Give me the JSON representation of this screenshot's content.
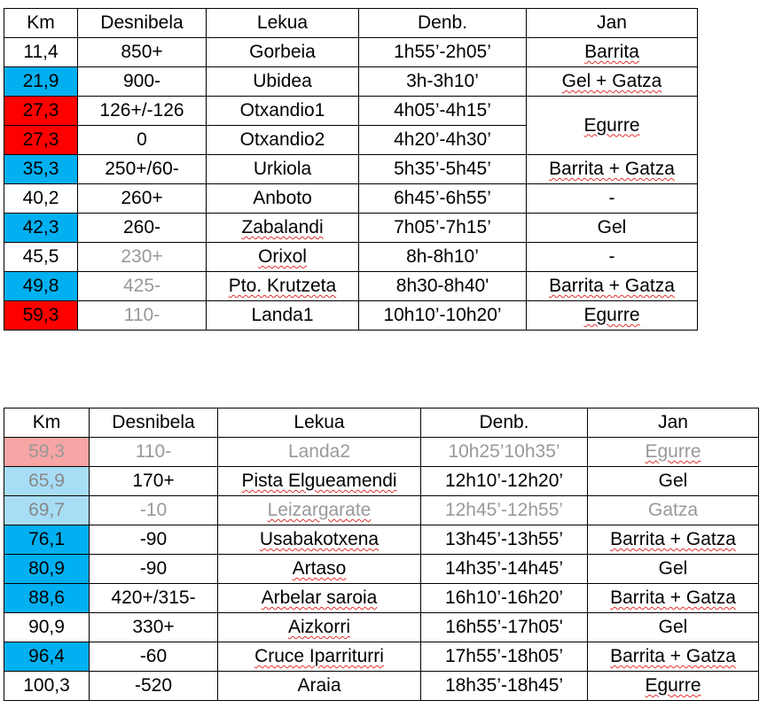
{
  "colors": {
    "blue": "#00b0f0",
    "red": "#ff0000",
    "pink": "#f8a5a5",
    "light_blue": "#a8ddf6"
  },
  "headers": [
    "Km",
    "Desnibela",
    "Lekua",
    "Denb.",
    "Jan"
  ],
  "table1": {
    "rows": [
      {
        "km": "11,4",
        "desnibela": "850+",
        "lekua": "Gorbeia",
        "denb": "1h55’-2h05’",
        "jan": "Barrita"
      },
      {
        "km": "21,9",
        "desnibela": "900-",
        "lekua": "Ubidea",
        "denb": "3h-3h10’",
        "jan": "Gel + Gatza"
      },
      {
        "km": "27,3",
        "desnibela": "126+/-126",
        "lekua": "Otxandio1",
        "denb": "4h05’-4h15’",
        "jan": "Egurre"
      },
      {
        "km": "27,3",
        "desnibela": "0",
        "lekua": "Otxandio2",
        "denb": "4h20’-4h30’",
        "jan": ""
      },
      {
        "km": "35,3",
        "desnibela": "250+/60-",
        "lekua": "Urkiola",
        "denb": "5h35’-5h45’",
        "jan": "Barrita + Gatza"
      },
      {
        "km": "40,2",
        "desnibela": "260+",
        "lekua": "Anboto",
        "denb": "6h45’-6h55’",
        "jan": "-"
      },
      {
        "km": "42,3",
        "desnibela": "260-",
        "lekua": "Zabalandi",
        "denb": "7h05’-7h15’",
        "jan": "Gel"
      },
      {
        "km": "45,5",
        "desnibela": "230+",
        "lekua": "Orixol",
        "denb": "8h-8h10’",
        "jan": "-"
      },
      {
        "km": "49,8",
        "desnibela": "425-",
        "lekua": "Pto. Krutzeta",
        "denb": "8h30-8h40'",
        "jan": "Barrita + Gatza"
      },
      {
        "km": "59,3",
        "desnibela": "110-",
        "lekua": "Landa1",
        "denb": "10h10’-10h20’",
        "jan": "Egurre"
      }
    ]
  },
  "table2": {
    "rows": [
      {
        "km": "59,3",
        "desnibela": "110-",
        "lekua": "Landa2",
        "denb": "10h25’10h35’",
        "jan": "Egurre"
      },
      {
        "km": "65,9",
        "desnibela": "170+",
        "lekua": "Pista Elgueamendi",
        "denb": "12h10’-12h20’",
        "jan": "Gel"
      },
      {
        "km": "69,7",
        "desnibela": "-10",
        "lekua": "Leizargarate",
        "denb": "12h45’-12h55’",
        "jan": "Gatza"
      },
      {
        "km": "76,1",
        "desnibela": "-90",
        "lekua": "Usabakotxena",
        "denb": "13h45’-13h55’",
        "jan": "Barrita + Gatza"
      },
      {
        "km": "80,9",
        "desnibela": "-90",
        "lekua": "Artaso",
        "denb": "14h35’-14h45’",
        "jan": "Gel"
      },
      {
        "km": "88,6",
        "desnibela": "420+/315-",
        "lekua": "Arbelar saroia",
        "denb": "16h10’-16h20’",
        "jan": "Barrita + Gatza"
      },
      {
        "km": "90,9",
        "desnibela": "330+",
        "lekua": "Aizkorri",
        "denb": "16h55’-17h05'",
        "jan": "Gel"
      },
      {
        "km": "96,4",
        "desnibela": "-60",
        "lekua": "Cruce Iparriturri",
        "denb": "17h55’-18h05’",
        "jan": "Barrita + Gatza"
      },
      {
        "km": "100,3",
        "desnibela": "-520",
        "lekua": "Araia",
        "denb": "18h35’-18h45’",
        "jan": "Egurre"
      }
    ]
  }
}
